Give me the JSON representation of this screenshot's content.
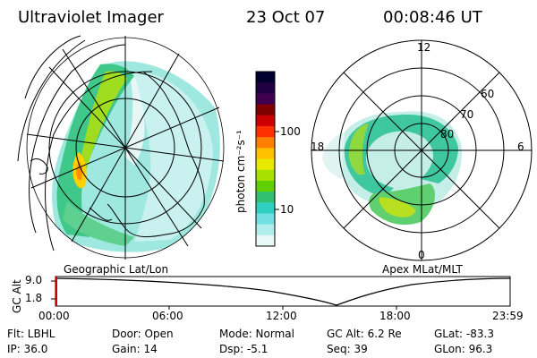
{
  "header": {
    "title": "Ultraviolet Imager",
    "date": "23 Oct 07",
    "time": "00:08:46 UT"
  },
  "colorbar": {
    "label": "photon cm⁻²s⁻¹",
    "ticks": [
      "100",
      "10"
    ],
    "colors": [
      "#000030",
      "#200040",
      "#400050",
      "#800000",
      "#cc0000",
      "#ff3000",
      "#ff8000",
      "#ffc000",
      "#e8e800",
      "#a8e000",
      "#60d000",
      "#30c070",
      "#30d0c0",
      "#70e0e0",
      "#b0eeee",
      "#e8f8f8"
    ]
  },
  "left_map": {
    "label": "Geographic Lat/Lon"
  },
  "right_map": {
    "label": "Apex MLat/MLT",
    "mlt_labels": {
      "top": "12",
      "left": "18",
      "right": "6",
      "bottom": "0"
    },
    "lat_labels": [
      "60",
      "70",
      "80"
    ]
  },
  "timeline": {
    "axis_label": "GC Alt",
    "y_ticks": [
      "9.0",
      "1.8"
    ],
    "x_ticks": [
      "00:00",
      "06:00",
      "12:00",
      "18:00",
      "23:59"
    ],
    "current_marker_color": "#cc0000"
  },
  "info": {
    "filter": "Flt: LBHL",
    "ip": "IP: 36.0",
    "door": "Door: Open",
    "gain": "Gain: 14",
    "mode": "Mode: Normal",
    "dsp": "Dsp:    -5.1",
    "gc_alt": "GC Alt: 6.2 Re",
    "seq": "Seq: 39",
    "glat": "GLat:  -83.3",
    "glon": "GLon:  96.3"
  }
}
